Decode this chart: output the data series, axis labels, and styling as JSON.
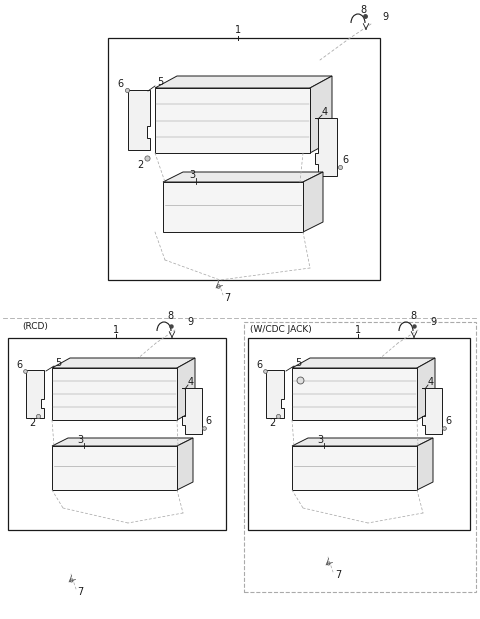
{
  "bg": "#ffffff",
  "lc": "#1a1a1a",
  "dc": "#aaaaaa",
  "fig_w": 4.8,
  "fig_h": 6.19,
  "rcd_label": "(RCD)",
  "wcdc_label": "(W/CDC JACK)"
}
